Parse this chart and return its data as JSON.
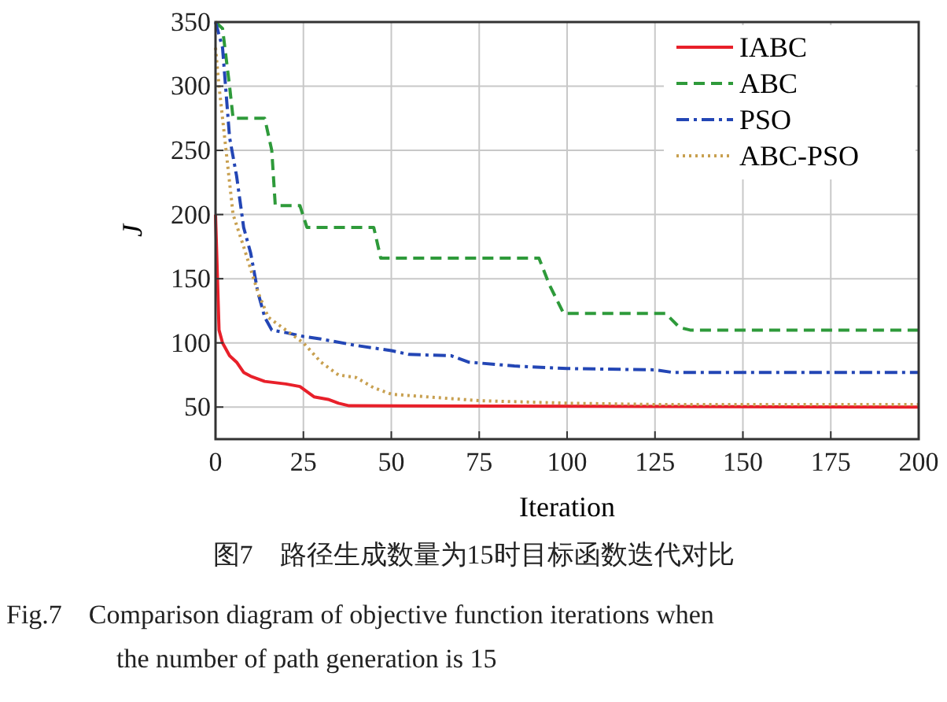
{
  "chart_data": {
    "type": "line",
    "xlabel": "Iteration",
    "ylabel": "J",
    "xlim": [
      0,
      200
    ],
    "xticks": [
      0,
      25,
      50,
      75,
      100,
      125,
      150,
      175,
      200
    ],
    "ylim": [
      25,
      350
    ],
    "yticks": [
      50,
      100,
      150,
      200,
      250,
      300,
      350
    ],
    "grid": true,
    "legend": "top right",
    "series": [
      {
        "name": "IABC",
        "color": "#e8202a",
        "line_style": "solid",
        "x": [
          0,
          1,
          2,
          4,
          6,
          8,
          10,
          14,
          20,
          24,
          26,
          28,
          32,
          35,
          38,
          200
        ],
        "values": [
          200,
          110,
          100,
          90,
          85,
          77,
          74,
          70,
          68,
          66,
          62,
          58,
          56,
          53,
          51,
          50
        ]
      },
      {
        "name": "ABC",
        "color": "#2e9a3a",
        "line_style": "dashed",
        "x": [
          0,
          2,
          4,
          5,
          14,
          16,
          17,
          24,
          26,
          45,
          47,
          92,
          95,
          99,
          128,
          132,
          135,
          200
        ],
        "values": [
          350,
          345,
          300,
          275,
          275,
          250,
          207,
          207,
          190,
          190,
          166,
          166,
          145,
          123,
          123,
          112,
          110,
          110
        ]
      },
      {
        "name": "PSO",
        "color": "#2346b5",
        "line_style": "dashdot",
        "x": [
          0,
          2,
          4,
          6,
          8,
          10,
          12,
          14,
          16,
          20,
          25,
          30,
          40,
          50,
          55,
          67,
          72,
          85,
          100,
          125,
          130,
          200
        ],
        "values": [
          350,
          330,
          260,
          230,
          190,
          170,
          140,
          120,
          110,
          108,
          105,
          103,
          98,
          94,
          91,
          90,
          85,
          82,
          80,
          79,
          77,
          77
        ]
      },
      {
        "name": "ABC-PSO",
        "color": "#c8a050",
        "line_style": "dotted",
        "x": [
          0,
          1,
          3,
          5,
          8,
          12,
          15,
          20,
          25,
          30,
          35,
          40,
          45,
          50,
          60,
          75,
          100,
          125,
          200
        ],
        "values": [
          330,
          300,
          250,
          200,
          175,
          140,
          120,
          110,
          100,
          85,
          75,
          73,
          65,
          60,
          58,
          55,
          53,
          52,
          52
        ]
      }
    ],
    "annotations": [
      "图7　路径生成数量为15时目标函数迭代对比",
      "Fig.7　Comparison diagram of objective function iterations when the number of path generation is 15"
    ]
  }
}
